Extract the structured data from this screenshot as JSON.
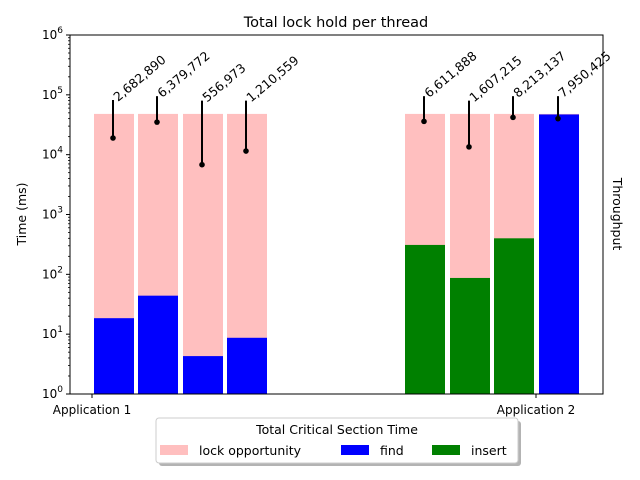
{
  "chart_data": {
    "type": "bar",
    "title": "Total lock hold per thread",
    "ylabel": "Time (ms)",
    "y2label": "Throughput",
    "xlabel": "",
    "yscale": "log",
    "ylim": [
      1,
      1000000
    ],
    "ytick_exponents": [
      "0",
      "1",
      "2",
      "3",
      "4",
      "5",
      "6"
    ],
    "ytick_base": "10",
    "groups": [
      "Application 1",
      "Application 2"
    ],
    "bars": [
      {
        "group": "Application 1",
        "lock_opportunity": 48000,
        "op": "find",
        "op_time": 18.5,
        "throughput": 19000,
        "error_top": 82000,
        "label": "2,682,890"
      },
      {
        "group": "Application 1",
        "lock_opportunity": 48000,
        "op": "find",
        "op_time": 44,
        "throughput": 35000,
        "error_top": 95000,
        "label": "6,379,772"
      },
      {
        "group": "Application 1",
        "lock_opportunity": 48000,
        "op": "find",
        "op_time": 4.3,
        "throughput": 6800,
        "error_top": 80000,
        "label": "556,973"
      },
      {
        "group": "Application 1",
        "lock_opportunity": 48000,
        "op": "find",
        "op_time": 8.7,
        "throughput": 11500,
        "error_top": 80000,
        "label": "1,210,559"
      },
      {
        "group": "Application 2",
        "lock_opportunity": 48000,
        "op": "insert",
        "op_time": 310,
        "throughput": 36000,
        "error_top": 95000,
        "label": "6,611,888"
      },
      {
        "group": "Application 2",
        "lock_opportunity": 48000,
        "op": "insert",
        "op_time": 87,
        "throughput": 13500,
        "error_top": 80000,
        "label": "1,607,215"
      },
      {
        "group": "Application 2",
        "lock_opportunity": 48000,
        "op": "insert",
        "op_time": 400,
        "throughput": 42000,
        "error_top": 95000,
        "label": "8,213,137"
      },
      {
        "group": "Application 2",
        "lock_opportunity": 48000,
        "op": "find",
        "op_time": 47000,
        "throughput": 40000,
        "error_top": 95000,
        "label": "7,950,425"
      }
    ],
    "legend": {
      "title": "Total Critical Section Time",
      "placement": "bottom-center",
      "entries": [
        {
          "label": "lock opportunity",
          "color": "#ffbfbf"
        },
        {
          "label": "find",
          "color": "#0000ff"
        },
        {
          "label": "insert",
          "color": "#008000"
        }
      ]
    },
    "colors": {
      "lock_opportunity": "#ffbfbf",
      "find": "#0000ff",
      "insert": "#008000"
    }
  }
}
